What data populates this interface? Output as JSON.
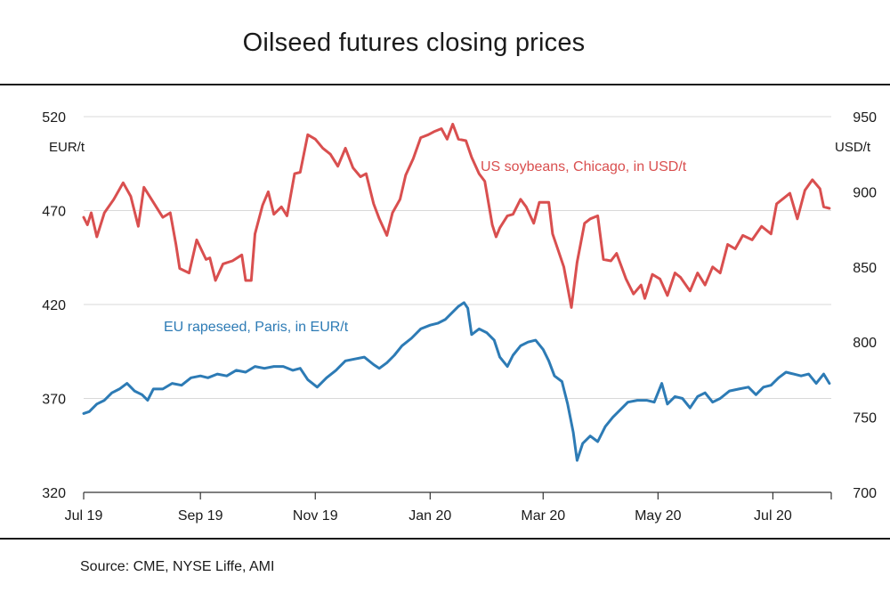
{
  "title": "Oilseed futures closing prices",
  "source": "Source: CME, NYSE Liffe, AMI",
  "chart_data": {
    "type": "line",
    "x_tick_labels": [
      "Jul 19",
      "Sep 19",
      "Nov 19",
      "Jan 20",
      "Mar 20",
      "May 20",
      "Jul 20"
    ],
    "x_range": [
      "2019-07-01",
      "2020-08-01"
    ],
    "y_left": {
      "unit_label": "EUR/t",
      "range": [
        320,
        520
      ],
      "ticks": [
        320,
        370,
        420,
        470,
        520
      ]
    },
    "y_right": {
      "unit_label": "USD/t",
      "range": [
        700,
        950
      ],
      "ticks": [
        700,
        750,
        800,
        850,
        900,
        950
      ]
    },
    "grid": true,
    "legend": "inline labels",
    "colors": {
      "soybeans": "#d94f4f",
      "rapeseed": "#2d7bb5",
      "grid": "#d9d9d9",
      "axis": "#333333"
    },
    "series": [
      {
        "name": "US soybeans, Chicago, in USD/t",
        "axis": "right",
        "color": "#d94f4f",
        "points": [
          [
            "2019-07-01",
            883
          ],
          [
            "2019-07-03",
            878
          ],
          [
            "2019-07-05",
            886
          ],
          [
            "2019-07-08",
            870
          ],
          [
            "2019-07-12",
            886
          ],
          [
            "2019-07-17",
            895
          ],
          [
            "2019-07-22",
            906
          ],
          [
            "2019-07-26",
            897
          ],
          [
            "2019-07-30",
            877
          ],
          [
            "2019-08-02",
            903
          ],
          [
            "2019-08-07",
            893
          ],
          [
            "2019-08-12",
            883
          ],
          [
            "2019-08-16",
            886
          ],
          [
            "2019-08-19",
            865
          ],
          [
            "2019-08-21",
            849
          ],
          [
            "2019-08-26",
            846
          ],
          [
            "2019-08-30",
            868
          ],
          [
            "2019-09-04",
            855
          ],
          [
            "2019-09-06",
            856
          ],
          [
            "2019-09-09",
            841
          ],
          [
            "2019-09-13",
            852
          ],
          [
            "2019-09-18",
            854
          ],
          [
            "2019-09-23",
            858
          ],
          [
            "2019-09-25",
            841
          ],
          [
            "2019-09-28",
            841
          ],
          [
            "2019-09-30",
            872
          ],
          [
            "2019-10-04",
            891
          ],
          [
            "2019-10-07",
            900
          ],
          [
            "2019-10-10",
            885
          ],
          [
            "2019-10-14",
            890
          ],
          [
            "2019-10-17",
            884
          ],
          [
            "2019-10-21",
            912
          ],
          [
            "2019-10-24",
            913
          ],
          [
            "2019-10-28",
            938
          ],
          [
            "2019-11-01",
            935
          ],
          [
            "2019-11-05",
            929
          ],
          [
            "2019-11-09",
            925
          ],
          [
            "2019-11-13",
            917
          ],
          [
            "2019-11-17",
            929
          ],
          [
            "2019-11-21",
            916
          ],
          [
            "2019-11-25",
            910
          ],
          [
            "2019-11-28",
            912
          ],
          [
            "2019-12-02",
            892
          ],
          [
            "2019-12-05",
            882
          ],
          [
            "2019-12-09",
            871
          ],
          [
            "2019-12-12",
            886
          ],
          [
            "2019-12-16",
            895
          ],
          [
            "2019-12-19",
            911
          ],
          [
            "2019-12-23",
            922
          ],
          [
            "2019-12-27",
            936
          ],
          [
            "2019-12-31",
            938
          ],
          [
            "2020-01-03",
            940
          ],
          [
            "2020-01-07",
            942
          ],
          [
            "2020-01-10",
            935
          ],
          [
            "2020-01-13",
            945
          ],
          [
            "2020-01-16",
            935
          ],
          [
            "2020-01-20",
            934
          ],
          [
            "2020-01-23",
            923
          ],
          [
            "2020-01-27",
            912
          ],
          [
            "2020-01-30",
            907
          ],
          [
            "2020-02-03",
            878
          ],
          [
            "2020-02-05",
            870
          ],
          [
            "2020-02-07",
            876
          ],
          [
            "2020-02-11",
            884
          ],
          [
            "2020-02-14",
            885
          ],
          [
            "2020-02-18",
            895
          ],
          [
            "2020-02-21",
            890
          ],
          [
            "2020-02-25",
            879
          ],
          [
            "2020-02-28",
            893
          ],
          [
            "2020-03-04",
            893
          ],
          [
            "2020-03-06",
            872
          ],
          [
            "2020-03-09",
            861
          ],
          [
            "2020-03-12",
            850
          ],
          [
            "2020-03-16",
            823
          ],
          [
            "2020-03-19",
            853
          ],
          [
            "2020-03-23",
            879
          ],
          [
            "2020-03-26",
            882
          ],
          [
            "2020-03-30",
            884
          ],
          [
            "2020-04-02",
            855
          ],
          [
            "2020-04-06",
            854
          ],
          [
            "2020-04-09",
            859
          ],
          [
            "2020-04-14",
            842
          ],
          [
            "2020-04-18",
            832
          ],
          [
            "2020-04-22",
            838
          ],
          [
            "2020-04-24",
            829
          ],
          [
            "2020-04-28",
            845
          ],
          [
            "2020-05-02",
            842
          ],
          [
            "2020-05-06",
            831
          ],
          [
            "2020-05-10",
            846
          ],
          [
            "2020-05-13",
            843
          ],
          [
            "2020-05-18",
            834
          ],
          [
            "2020-05-22",
            846
          ],
          [
            "2020-05-26",
            838
          ],
          [
            "2020-05-30",
            850
          ],
          [
            "2020-06-03",
            846
          ],
          [
            "2020-06-07",
            865
          ],
          [
            "2020-06-11",
            862
          ],
          [
            "2020-06-15",
            871
          ],
          [
            "2020-06-20",
            868
          ],
          [
            "2020-06-25",
            877
          ],
          [
            "2020-06-30",
            872
          ],
          [
            "2020-07-03",
            892
          ],
          [
            "2020-07-07",
            896
          ],
          [
            "2020-07-10",
            899
          ],
          [
            "2020-07-14",
            882
          ],
          [
            "2020-07-18",
            901
          ],
          [
            "2020-07-22",
            908
          ],
          [
            "2020-07-26",
            902
          ],
          [
            "2020-07-28",
            890
          ],
          [
            "2020-07-31",
            889
          ]
        ]
      },
      {
        "name": "EU rapeseed, Paris, in EUR/t",
        "axis": "left",
        "color": "#2d7bb5",
        "points": [
          [
            "2019-07-01",
            362
          ],
          [
            "2019-07-04",
            363
          ],
          [
            "2019-07-08",
            367
          ],
          [
            "2019-07-12",
            369
          ],
          [
            "2019-07-16",
            373
          ],
          [
            "2019-07-20",
            375
          ],
          [
            "2019-07-24",
            378
          ],
          [
            "2019-07-28",
            374
          ],
          [
            "2019-08-01",
            372
          ],
          [
            "2019-08-04",
            369
          ],
          [
            "2019-08-07",
            375
          ],
          [
            "2019-08-12",
            375
          ],
          [
            "2019-08-17",
            378
          ],
          [
            "2019-08-22",
            377
          ],
          [
            "2019-08-27",
            381
          ],
          [
            "2019-09-01",
            382
          ],
          [
            "2019-09-05",
            381
          ],
          [
            "2019-09-10",
            383
          ],
          [
            "2019-09-15",
            382
          ],
          [
            "2019-09-20",
            385
          ],
          [
            "2019-09-25",
            384
          ],
          [
            "2019-09-30",
            387
          ],
          [
            "2019-10-05",
            386
          ],
          [
            "2019-10-10",
            387
          ],
          [
            "2019-10-15",
            387
          ],
          [
            "2019-10-20",
            385
          ],
          [
            "2019-10-24",
            386
          ],
          [
            "2019-10-28",
            380
          ],
          [
            "2019-11-02",
            376
          ],
          [
            "2019-11-07",
            381
          ],
          [
            "2019-11-12",
            385
          ],
          [
            "2019-11-17",
            390
          ],
          [
            "2019-11-22",
            391
          ],
          [
            "2019-11-27",
            392
          ],
          [
            "2019-12-02",
            388
          ],
          [
            "2019-12-05",
            386
          ],
          [
            "2019-12-09",
            389
          ],
          [
            "2019-12-13",
            393
          ],
          [
            "2019-12-17",
            398
          ],
          [
            "2019-12-22",
            402
          ],
          [
            "2019-12-27",
            407
          ],
          [
            "2020-01-01",
            409
          ],
          [
            "2020-01-05",
            410
          ],
          [
            "2020-01-09",
            412
          ],
          [
            "2020-01-13",
            416
          ],
          [
            "2020-01-16",
            419
          ],
          [
            "2020-01-19",
            421
          ],
          [
            "2020-01-21",
            418
          ],
          [
            "2020-01-23",
            404
          ],
          [
            "2020-01-27",
            407
          ],
          [
            "2020-01-31",
            405
          ],
          [
            "2020-02-04",
            401
          ],
          [
            "2020-02-07",
            392
          ],
          [
            "2020-02-11",
            387
          ],
          [
            "2020-02-14",
            393
          ],
          [
            "2020-02-18",
            398
          ],
          [
            "2020-02-22",
            400
          ],
          [
            "2020-02-26",
            401
          ],
          [
            "2020-03-01",
            396
          ],
          [
            "2020-03-04",
            390
          ],
          [
            "2020-03-07",
            382
          ],
          [
            "2020-03-11",
            379
          ],
          [
            "2020-03-14",
            367
          ],
          [
            "2020-03-17",
            352
          ],
          [
            "2020-03-19",
            337
          ],
          [
            "2020-03-22",
            346
          ],
          [
            "2020-03-26",
            350
          ],
          [
            "2020-03-30",
            347
          ],
          [
            "2020-04-03",
            355
          ],
          [
            "2020-04-07",
            360
          ],
          [
            "2020-04-11",
            364
          ],
          [
            "2020-04-15",
            368
          ],
          [
            "2020-04-20",
            369
          ],
          [
            "2020-04-25",
            369
          ],
          [
            "2020-04-29",
            368
          ],
          [
            "2020-05-03",
            378
          ],
          [
            "2020-05-06",
            367
          ],
          [
            "2020-05-10",
            371
          ],
          [
            "2020-05-14",
            370
          ],
          [
            "2020-05-18",
            365
          ],
          [
            "2020-05-22",
            371
          ],
          [
            "2020-05-26",
            373
          ],
          [
            "2020-05-30",
            368
          ],
          [
            "2020-06-03",
            370
          ],
          [
            "2020-06-08",
            374
          ],
          [
            "2020-06-13",
            375
          ],
          [
            "2020-06-18",
            376
          ],
          [
            "2020-06-22",
            372
          ],
          [
            "2020-06-26",
            376
          ],
          [
            "2020-06-30",
            377
          ],
          [
            "2020-07-04",
            381
          ],
          [
            "2020-07-08",
            384
          ],
          [
            "2020-07-12",
            383
          ],
          [
            "2020-07-16",
            382
          ],
          [
            "2020-07-20",
            383
          ],
          [
            "2020-07-24",
            378
          ],
          [
            "2020-07-28",
            383
          ],
          [
            "2020-07-31",
            378
          ]
        ]
      }
    ]
  }
}
